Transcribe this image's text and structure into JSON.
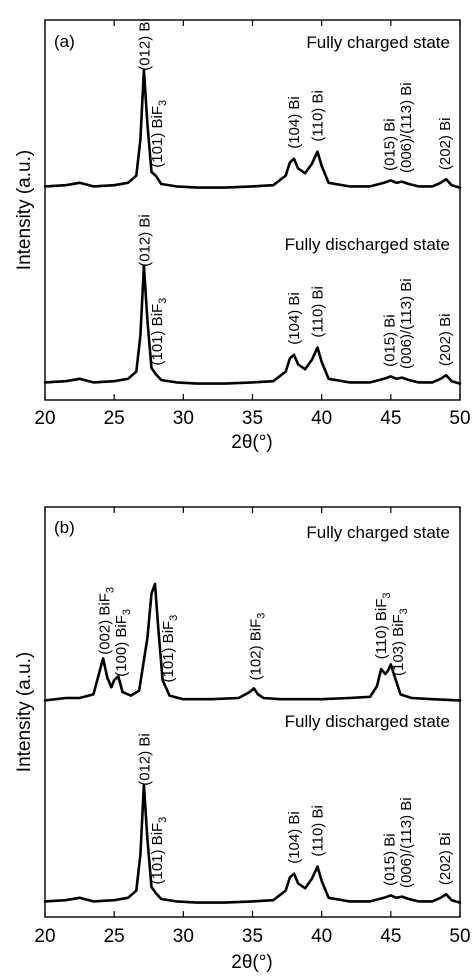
{
  "chart_data": [
    {
      "type": "line",
      "panel": "(a)",
      "xlabel": "2θ(°)",
      "ylabel": "Intensity (a.u.)",
      "xlim": [
        20,
        50
      ],
      "xticks": [
        20,
        25,
        30,
        35,
        40,
        45,
        50
      ],
      "series": [
        {
          "name": "Fully charged state",
          "x": [
            20,
            21.5,
            22.5,
            23.5,
            25,
            26,
            26.6,
            26.9,
            27.15,
            27.4,
            27.7,
            28.0,
            28.4,
            29.5,
            31,
            33,
            35,
            36.5,
            37.4,
            37.7,
            38.0,
            38.3,
            38.8,
            39.3,
            39.7,
            40.0,
            40.5,
            42,
            43.5,
            44.5,
            45.0,
            45.4,
            45.8,
            46.3,
            47,
            48,
            48.6,
            49.0,
            49.4,
            50
          ],
          "y": [
            0.03,
            0.04,
            0.06,
            0.03,
            0.04,
            0.06,
            0.12,
            0.42,
            1.0,
            0.55,
            0.15,
            0.12,
            0.05,
            0.03,
            0.02,
            0.02,
            0.03,
            0.04,
            0.12,
            0.23,
            0.26,
            0.18,
            0.14,
            0.22,
            0.32,
            0.2,
            0.06,
            0.03,
            0.03,
            0.06,
            0.08,
            0.06,
            0.07,
            0.05,
            0.03,
            0.03,
            0.06,
            0.09,
            0.04,
            0.02
          ]
        },
        {
          "name": "Fully discharged state",
          "x": [
            20,
            21.5,
            22.5,
            23.5,
            25,
            26,
            26.6,
            26.9,
            27.15,
            27.4,
            27.7,
            28.0,
            28.4,
            29.5,
            31,
            33,
            35,
            36.5,
            37.4,
            37.7,
            38.0,
            38.3,
            38.8,
            39.3,
            39.7,
            40.0,
            40.5,
            42,
            43.5,
            44.5,
            45.0,
            45.4,
            45.8,
            46.3,
            47,
            48,
            48.6,
            49.0,
            49.4,
            50
          ],
          "y": [
            0.03,
            0.04,
            0.06,
            0.03,
            0.04,
            0.06,
            0.12,
            0.42,
            1.0,
            0.55,
            0.15,
            0.1,
            0.05,
            0.03,
            0.02,
            0.02,
            0.03,
            0.04,
            0.12,
            0.23,
            0.26,
            0.18,
            0.14,
            0.22,
            0.32,
            0.2,
            0.06,
            0.03,
            0.03,
            0.06,
            0.08,
            0.06,
            0.07,
            0.05,
            0.03,
            0.03,
            0.06,
            0.09,
            0.04,
            0.02
          ]
        }
      ],
      "annotations": [
        {
          "trace": 0,
          "x": 27.2,
          "parts": [
            {
              "t": "(012) Bi"
            }
          ]
        },
        {
          "trace": 0,
          "x": 28.1,
          "parts": [
            {
              "t": "(101) BiF"
            },
            {
              "t": "3",
              "sub": true
            }
          ]
        },
        {
          "trace": 0,
          "x": 38.0,
          "parts": [
            {
              "t": "(104) Bi"
            }
          ]
        },
        {
          "trace": 0,
          "x": 39.7,
          "parts": [
            {
              "t": "(110) Bi"
            }
          ]
        },
        {
          "trace": 0,
          "x": 44.9,
          "parts": [
            {
              "t": "(015) Bi"
            }
          ]
        },
        {
          "trace": 0,
          "x": 46.1,
          "parts": [
            {
              "t": "(006)/(113) Bi"
            }
          ]
        },
        {
          "trace": 0,
          "x": 48.9,
          "parts": [
            {
              "t": "(202) Bi"
            }
          ]
        },
        {
          "trace": 1,
          "x": 27.2,
          "parts": [
            {
              "t": "(012) Bi"
            }
          ]
        },
        {
          "trace": 1,
          "x": 28.1,
          "parts": [
            {
              "t": "(101) BiF"
            },
            {
              "t": "3",
              "sub": true
            }
          ]
        },
        {
          "trace": 1,
          "x": 38.0,
          "parts": [
            {
              "t": "(104) Bi"
            }
          ]
        },
        {
          "trace": 1,
          "x": 39.7,
          "parts": [
            {
              "t": "(110) Bi"
            }
          ]
        },
        {
          "trace": 1,
          "x": 44.9,
          "parts": [
            {
              "t": "(015) Bi"
            }
          ]
        },
        {
          "trace": 1,
          "x": 46.1,
          "parts": [
            {
              "t": "(006)/(113) Bi"
            }
          ]
        },
        {
          "trace": 1,
          "x": 48.9,
          "parts": [
            {
              "t": "(202) Bi"
            }
          ]
        }
      ]
    },
    {
      "type": "line",
      "panel": "(b)",
      "xlabel": "2θ(°)",
      "ylabel": "Intensity (a.u.)",
      "xlim": [
        20,
        50
      ],
      "xticks": [
        20,
        25,
        30,
        35,
        40,
        45,
        50
      ],
      "series": [
        {
          "name": "Fully charged state",
          "x": [
            20,
            21.5,
            22.5,
            23.5,
            23.9,
            24.2,
            24.5,
            24.8,
            25.0,
            25.3,
            25.6,
            26.2,
            26.8,
            27.4,
            27.7,
            27.95,
            28.2,
            28.5,
            29.0,
            30,
            32,
            34,
            34.8,
            35.1,
            35.4,
            35.8,
            37,
            40,
            42,
            43.5,
            44.0,
            44.3,
            44.6,
            44.8,
            45.0,
            45.3,
            45.7,
            46.5,
            48,
            50
          ],
          "y": [
            0.03,
            0.05,
            0.05,
            0.08,
            0.25,
            0.38,
            0.22,
            0.14,
            0.2,
            0.23,
            0.1,
            0.07,
            0.11,
            0.55,
            0.92,
            1.0,
            0.62,
            0.2,
            0.07,
            0.04,
            0.04,
            0.05,
            0.1,
            0.13,
            0.08,
            0.05,
            0.04,
            0.04,
            0.05,
            0.06,
            0.15,
            0.29,
            0.25,
            0.28,
            0.33,
            0.22,
            0.08,
            0.05,
            0.04,
            0.03
          ]
        },
        {
          "name": "Fully discharged state",
          "x": [
            20,
            21.5,
            22.5,
            23.5,
            25,
            26,
            26.6,
            26.9,
            27.15,
            27.4,
            27.7,
            28.0,
            28.4,
            29.5,
            31,
            33,
            35,
            36.5,
            37.4,
            37.7,
            38.0,
            38.3,
            38.8,
            39.3,
            39.7,
            40.0,
            40.5,
            42,
            43.5,
            44.5,
            45.0,
            45.4,
            45.8,
            46.3,
            47,
            48,
            48.6,
            49.0,
            49.4,
            50
          ],
          "y": [
            0.03,
            0.04,
            0.06,
            0.03,
            0.04,
            0.06,
            0.12,
            0.42,
            1.0,
            0.55,
            0.15,
            0.1,
            0.05,
            0.03,
            0.02,
            0.02,
            0.03,
            0.04,
            0.12,
            0.23,
            0.26,
            0.18,
            0.14,
            0.22,
            0.32,
            0.2,
            0.06,
            0.03,
            0.03,
            0.06,
            0.08,
            0.06,
            0.07,
            0.05,
            0.03,
            0.03,
            0.06,
            0.09,
            0.04,
            0.02
          ]
        }
      ],
      "annotations": [
        {
          "trace": 0,
          "x": 24.3,
          "parts": [
            {
              "t": "(002) BiF"
            },
            {
              "t": "3",
              "sub": true
            }
          ]
        },
        {
          "trace": 0,
          "x": 25.5,
          "parts": [
            {
              "t": "(100) BiF"
            },
            {
              "t": "3",
              "sub": true
            }
          ]
        },
        {
          "trace": 0,
          "x": 28.9,
          "parts": [
            {
              "t": "(101) BiF"
            },
            {
              "t": "3",
              "sub": true
            }
          ]
        },
        {
          "trace": 0,
          "x": 35.2,
          "parts": [
            {
              "t": "(102) BiF"
            },
            {
              "t": "3",
              "sub": true
            }
          ]
        },
        {
          "trace": 0,
          "x": 44.3,
          "parts": [
            {
              "t": "(110) BiF"
            },
            {
              "t": "3",
              "sub": true
            }
          ]
        },
        {
          "trace": 0,
          "x": 45.5,
          "parts": [
            {
              "t": "(103) BiF"
            },
            {
              "t": "3",
              "sub": true
            }
          ]
        },
        {
          "trace": 1,
          "x": 27.2,
          "parts": [
            {
              "t": "(012) Bi"
            }
          ]
        },
        {
          "trace": 1,
          "x": 28.1,
          "parts": [
            {
              "t": "(101) BiF"
            },
            {
              "t": "3",
              "sub": true
            }
          ]
        },
        {
          "trace": 1,
          "x": 38.0,
          "parts": [
            {
              "t": "(104) Bi"
            }
          ]
        },
        {
          "trace": 1,
          "x": 39.7,
          "parts": [
            {
              "t": "(110) Bi"
            }
          ]
        },
        {
          "trace": 1,
          "x": 44.9,
          "parts": [
            {
              "t": "(015) Bi"
            }
          ]
        },
        {
          "trace": 1,
          "x": 46.1,
          "parts": [
            {
              "t": "(006)/(113) Bi"
            }
          ]
        },
        {
          "trace": 1,
          "x": 48.9,
          "parts": [
            {
              "t": "(202) Bi"
            }
          ]
        }
      ]
    }
  ]
}
